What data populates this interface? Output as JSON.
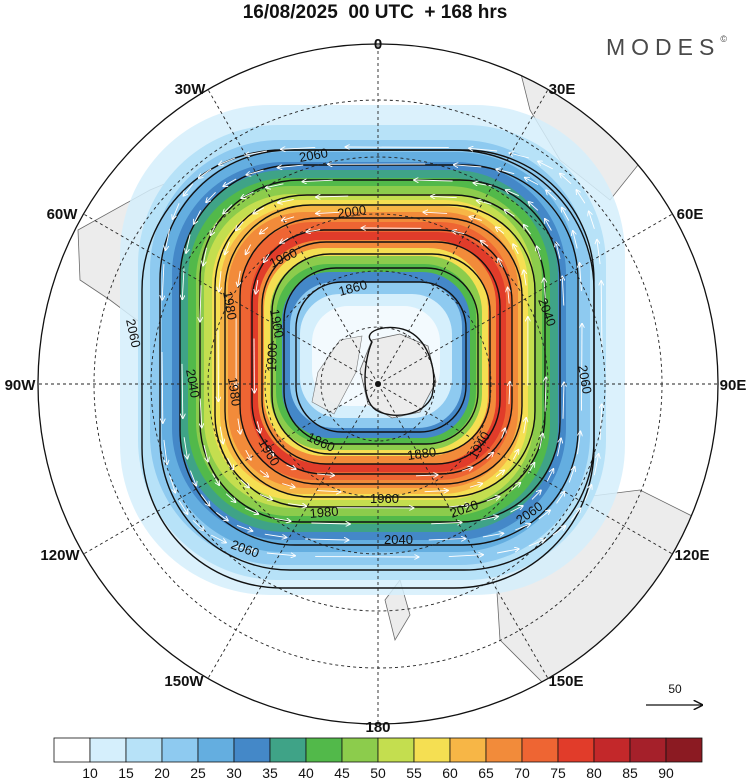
{
  "title": "16/08/2025  00 UTC  + 168 hrs",
  "brand": {
    "name": "MODES",
    "mark": "©"
  },
  "longitude_labels": [
    {
      "id": "0",
      "text": "0",
      "angle": 0
    },
    {
      "id": "30E",
      "text": "30E",
      "angle": 30
    },
    {
      "id": "60E",
      "text": "60E",
      "angle": 60
    },
    {
      "id": "90E",
      "text": "90E",
      "angle": 90
    },
    {
      "id": "120E",
      "text": "120E",
      "angle": 120
    },
    {
      "id": "150E",
      "text": "150E",
      "angle": 150
    },
    {
      "id": "180",
      "text": "180",
      "angle": 180
    },
    {
      "id": "150W",
      "text": "150W",
      "angle": 210
    },
    {
      "id": "120W",
      "text": "120W",
      "angle": 240
    },
    {
      "id": "90W",
      "text": "90W",
      "angle": 270
    },
    {
      "id": "60W",
      "text": "60W",
      "angle": 300
    },
    {
      "id": "30W",
      "text": "30W",
      "angle": 330
    }
  ],
  "contour_labels": [
    {
      "text": "2060"
    },
    {
      "text": "2060"
    },
    {
      "text": "2060"
    },
    {
      "text": "2060"
    },
    {
      "text": "2060"
    },
    {
      "text": "2040"
    },
    {
      "text": "2040"
    },
    {
      "text": "2040"
    },
    {
      "text": "2020"
    },
    {
      "text": "2000"
    },
    {
      "text": "1980"
    },
    {
      "text": "1980"
    },
    {
      "text": "1980"
    },
    {
      "text": "1960"
    },
    {
      "text": "1960"
    },
    {
      "text": "1960"
    },
    {
      "text": "1940"
    },
    {
      "text": "1900"
    },
    {
      "text": "1900"
    },
    {
      "text": "1880"
    },
    {
      "text": "1860"
    },
    {
      "text": "1860"
    }
  ],
  "colorbar": {
    "labels": [
      "10",
      "15",
      "20",
      "25",
      "30",
      "35",
      "40",
      "45",
      "50",
      "55",
      "60",
      "65",
      "70",
      "75",
      "80",
      "85",
      "90"
    ],
    "colors": [
      "#ffffff",
      "#d5effc",
      "#b7e2f8",
      "#8ecaf0",
      "#64aee0",
      "#4488c8",
      "#3fa387",
      "#52b94a",
      "#8ccc4c",
      "#c4de4f",
      "#f5df52",
      "#f7b646",
      "#f28b3a",
      "#ee6533",
      "#e13c2a",
      "#c3282a",
      "#a5202a",
      "#8b1a22"
    ]
  },
  "vector_key": {
    "value": "50"
  }
}
